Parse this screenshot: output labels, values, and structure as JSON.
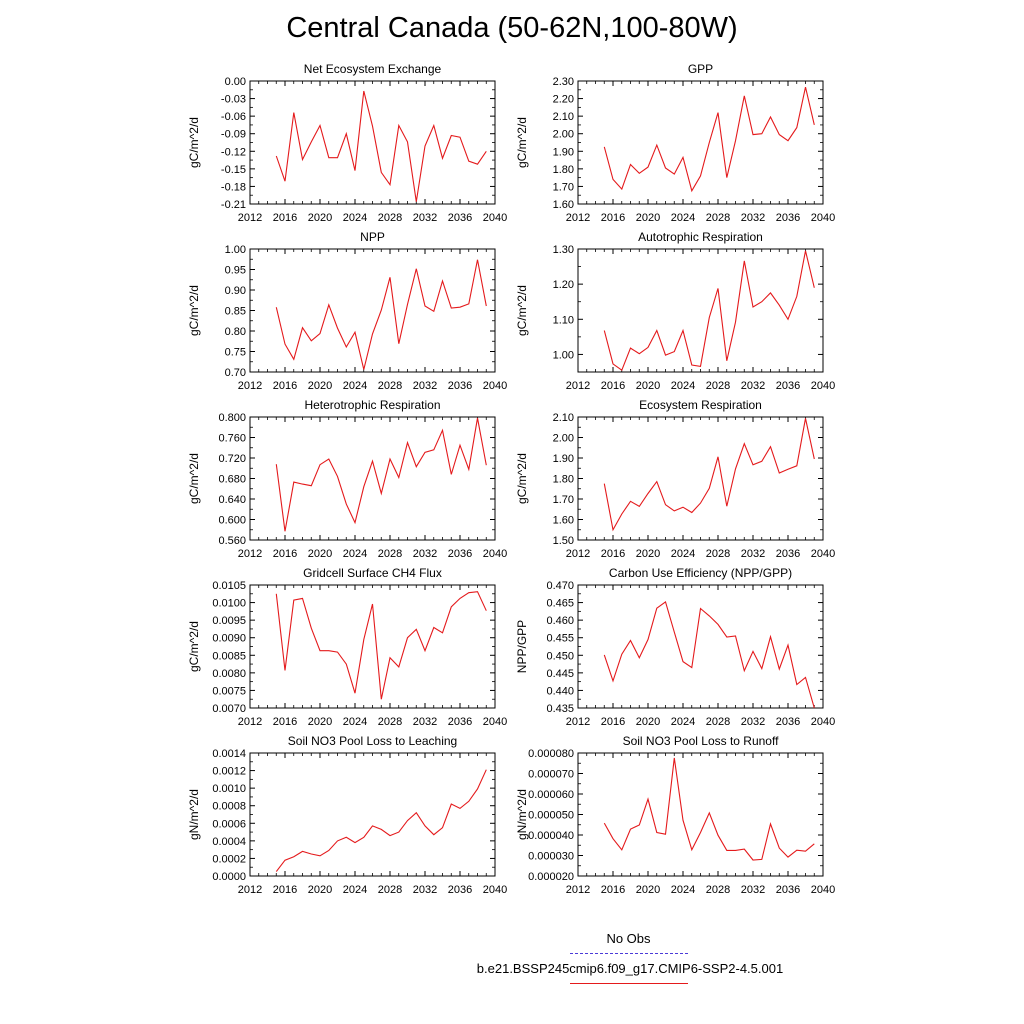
{
  "title": "Central Canada (50-62N,100-80W)",
  "legend": {
    "obs_label": "No Obs",
    "model_label": "b.e21.BSSP245cmip6.f09_g17.CMIP6-SSP2-4.5.001",
    "obs_color": "#4b3bd8",
    "model_color": "#e41a1c"
  },
  "chart_data": [
    {
      "type": "line",
      "title": "Net Ecosystem Exchange",
      "ylabel": "gC/m^2/d",
      "xlim": [
        2012,
        2040
      ],
      "xticks": [
        "2012",
        "2016",
        "2020",
        "2024",
        "2028",
        "2032",
        "2036",
        "2040"
      ],
      "ylim": [
        -0.21,
        0.0
      ],
      "yticks": [
        "-0.21",
        "-0.18",
        "-0.15",
        "-0.12",
        "-0.09",
        "-0.06",
        "-0.03",
        "0.00"
      ],
      "x": [
        2015,
        2016,
        2017,
        2018,
        2019,
        2020,
        2021,
        2022,
        2023,
        2024,
        2025,
        2026,
        2027,
        2028,
        2029,
        2030,
        2031,
        2032,
        2033,
        2034,
        2035,
        2036,
        2037,
        2038,
        2039
      ],
      "y": [
        -0.128,
        -0.171,
        -0.054,
        -0.134,
        -0.104,
        -0.076,
        -0.131,
        -0.131,
        -0.09,
        -0.153,
        -0.017,
        -0.077,
        -0.156,
        -0.177,
        -0.076,
        -0.104,
        -0.206,
        -0.111,
        -0.076,
        -0.132,
        -0.093,
        -0.096,
        -0.137,
        -0.142,
        -0.12
      ],
      "color": "#e41a1c"
    },
    {
      "type": "line",
      "title": "GPP",
      "ylabel": "gC/m^2/d",
      "xlim": [
        2012,
        2040
      ],
      "xticks": [
        "2012",
        "2016",
        "2020",
        "2024",
        "2028",
        "2032",
        "2036",
        "2040"
      ],
      "ylim": [
        1.6,
        2.3
      ],
      "yticks": [
        "1.60",
        "1.70",
        "1.80",
        "1.90",
        "2.00",
        "2.10",
        "2.20",
        "2.30"
      ],
      "x": [
        2015,
        2016,
        2017,
        2018,
        2019,
        2020,
        2021,
        2022,
        2023,
        2024,
        2025,
        2026,
        2027,
        2028,
        2029,
        2030,
        2031,
        2032,
        2033,
        2034,
        2035,
        2036,
        2037,
        2038,
        2039
      ],
      "y": [
        1.925,
        1.74,
        1.685,
        1.825,
        1.775,
        1.81,
        1.935,
        1.805,
        1.77,
        1.865,
        1.675,
        1.76,
        1.95,
        2.12,
        1.75,
        1.96,
        2.215,
        1.995,
        2.0,
        2.095,
        1.995,
        1.96,
        2.035,
        2.265,
        2.05
      ],
      "color": "#e41a1c"
    },
    {
      "type": "line",
      "title": "NPP",
      "ylabel": "gC/m^2/d",
      "xlim": [
        2012,
        2040
      ],
      "xticks": [
        "2012",
        "2016",
        "2020",
        "2024",
        "2028",
        "2032",
        "2036",
        "2040"
      ],
      "ylim": [
        0.7,
        1.0
      ],
      "yticks": [
        "0.70",
        "0.75",
        "0.80",
        "0.85",
        "0.90",
        "0.95",
        "1.00"
      ],
      "x": [
        2015,
        2016,
        2017,
        2018,
        2019,
        2020,
        2021,
        2022,
        2023,
        2024,
        2025,
        2026,
        2027,
        2028,
        2029,
        2030,
        2031,
        2032,
        2033,
        2034,
        2035,
        2036,
        2037,
        2038,
        2039
      ],
      "y": [
        0.858,
        0.768,
        0.731,
        0.808,
        0.776,
        0.794,
        0.864,
        0.807,
        0.761,
        0.797,
        0.706,
        0.793,
        0.851,
        0.931,
        0.769,
        0.865,
        0.952,
        0.861,
        0.848,
        0.922,
        0.856,
        0.858,
        0.866,
        0.974,
        0.861
      ],
      "color": "#e41a1c"
    },
    {
      "type": "line",
      "title": "Autotrophic Respiration",
      "ylabel": "gC/m^2/d",
      "xlim": [
        2012,
        2040
      ],
      "xticks": [
        "2012",
        "2016",
        "2020",
        "2024",
        "2028",
        "2032",
        "2036",
        "2040"
      ],
      "ylim": [
        0.95,
        1.3
      ],
      "yticks": [
        "1.00",
        "1.10",
        "1.20",
        "1.30"
      ],
      "x": [
        2015,
        2016,
        2017,
        2018,
        2019,
        2020,
        2021,
        2022,
        2023,
        2024,
        2025,
        2026,
        2027,
        2028,
        2029,
        2030,
        2031,
        2032,
        2033,
        2034,
        2035,
        2036,
        2037,
        2038,
        2039
      ],
      "y": [
        1.068,
        0.973,
        0.955,
        1.018,
        1.002,
        1.02,
        1.068,
        0.998,
        1.008,
        1.068,
        0.97,
        0.966,
        1.105,
        1.188,
        0.982,
        1.092,
        1.266,
        1.135,
        1.15,
        1.175,
        1.14,
        1.1,
        1.165,
        1.295,
        1.19
      ],
      "color": "#e41a1c"
    },
    {
      "type": "line",
      "title": "Heterotrophic Respiration",
      "ylabel": "gC/m^2/d",
      "xlim": [
        2012,
        2040
      ],
      "xticks": [
        "2012",
        "2016",
        "2020",
        "2024",
        "2028",
        "2032",
        "2036",
        "2040"
      ],
      "ylim": [
        0.56,
        0.8
      ],
      "yticks": [
        "0.560",
        "0.600",
        "0.640",
        "0.680",
        "0.720",
        "0.760",
        "0.800"
      ],
      "x": [
        2015,
        2016,
        2017,
        2018,
        2019,
        2020,
        2021,
        2022,
        2023,
        2024,
        2025,
        2026,
        2027,
        2028,
        2029,
        2030,
        2031,
        2032,
        2033,
        2034,
        2035,
        2036,
        2037,
        2038,
        2039
      ],
      "y": [
        0.708,
        0.577,
        0.673,
        0.669,
        0.666,
        0.707,
        0.718,
        0.684,
        0.63,
        0.594,
        0.664,
        0.714,
        0.651,
        0.718,
        0.682,
        0.75,
        0.703,
        0.731,
        0.736,
        0.774,
        0.688,
        0.745,
        0.698,
        0.798,
        0.706
      ],
      "color": "#e41a1c"
    },
    {
      "type": "line",
      "title": "Ecosystem Respiration",
      "ylabel": "gC/m^2/d",
      "xlim": [
        2012,
        2040
      ],
      "xticks": [
        "2012",
        "2016",
        "2020",
        "2024",
        "2028",
        "2032",
        "2036",
        "2040"
      ],
      "ylim": [
        1.5,
        2.1
      ],
      "yticks": [
        "1.50",
        "1.60",
        "1.70",
        "1.80",
        "1.90",
        "2.00",
        "2.10"
      ],
      "x": [
        2015,
        2016,
        2017,
        2018,
        2019,
        2020,
        2021,
        2022,
        2023,
        2024,
        2025,
        2026,
        2027,
        2028,
        2029,
        2030,
        2031,
        2032,
        2033,
        2034,
        2035,
        2036,
        2037,
        2038,
        2039
      ],
      "y": [
        1.775,
        1.55,
        1.627,
        1.689,
        1.664,
        1.727,
        1.785,
        1.672,
        1.642,
        1.66,
        1.634,
        1.68,
        1.752,
        1.906,
        1.665,
        1.847,
        1.97,
        1.867,
        1.884,
        1.955,
        1.827,
        1.845,
        1.862,
        2.093,
        1.895
      ],
      "color": "#e41a1c"
    },
    {
      "type": "line",
      "title": "Gridcell Surface CH4 Flux",
      "ylabel": "gC/m^2/d",
      "xlim": [
        2012,
        2040
      ],
      "xticks": [
        "2012",
        "2016",
        "2020",
        "2024",
        "2028",
        "2032",
        "2036",
        "2040"
      ],
      "ylim": [
        0.007,
        0.0105
      ],
      "yticks": [
        "0.0070",
        "0.0075",
        "0.0080",
        "0.0085",
        "0.0090",
        "0.0095",
        "0.0100",
        "0.0105"
      ],
      "x": [
        2015,
        2016,
        2017,
        2018,
        2019,
        2020,
        2021,
        2022,
        2023,
        2024,
        2025,
        2026,
        2027,
        2028,
        2029,
        2030,
        2031,
        2032,
        2033,
        2034,
        2035,
        2036,
        2037,
        2038,
        2039
      ],
      "y": [
        0.01025,
        0.00807,
        0.01007,
        0.01012,
        0.00927,
        0.00863,
        0.00863,
        0.00859,
        0.00825,
        0.00742,
        0.00895,
        0.00996,
        0.00725,
        0.00843,
        0.00817,
        0.009,
        0.00924,
        0.00863,
        0.00929,
        0.00914,
        0.00988,
        0.01012,
        0.01028,
        0.01031,
        0.00977
      ],
      "color": "#e41a1c"
    },
    {
      "type": "line",
      "title": "Carbon Use Efficiency (NPP/GPP)",
      "ylabel": "NPP/GPP",
      "xlim": [
        2012,
        2040
      ],
      "xticks": [
        "2012",
        "2016",
        "2020",
        "2024",
        "2028",
        "2032",
        "2036",
        "2040"
      ],
      "ylim": [
        0.435,
        0.47
      ],
      "yticks": [
        "0.435",
        "0.440",
        "0.445",
        "0.450",
        "0.455",
        "0.460",
        "0.465",
        "0.470"
      ],
      "x": [
        2015,
        2016,
        2017,
        2018,
        2019,
        2020,
        2021,
        2022,
        2023,
        2024,
        2025,
        2026,
        2027,
        2028,
        2029,
        2030,
        2031,
        2032,
        2033,
        2034,
        2035,
        2036,
        2037,
        2038,
        2039
      ],
      "y": [
        0.4501,
        0.4427,
        0.4503,
        0.4542,
        0.4493,
        0.4545,
        0.4634,
        0.4652,
        0.4566,
        0.4482,
        0.4465,
        0.4633,
        0.4612,
        0.4588,
        0.4552,
        0.4555,
        0.4456,
        0.4511,
        0.4462,
        0.4553,
        0.4461,
        0.4529,
        0.4417,
        0.4437,
        0.435
      ],
      "color": "#e41a1c"
    },
    {
      "type": "line",
      "title": "Soil NO3 Pool Loss to Leaching",
      "ylabel": "gN/m^2/d",
      "xlim": [
        2012,
        2040
      ],
      "xticks": [
        "2012",
        "2016",
        "2020",
        "2024",
        "2028",
        "2032",
        "2036",
        "2040"
      ],
      "ylim": [
        0.0,
        0.0014
      ],
      "yticks": [
        "0.0000",
        "0.0002",
        "0.0004",
        "0.0006",
        "0.0008",
        "0.0010",
        "0.0012",
        "0.0014"
      ],
      "x": [
        2015,
        2016,
        2017,
        2018,
        2019,
        2020,
        2021,
        2022,
        2023,
        2024,
        2025,
        2026,
        2027,
        2028,
        2029,
        2030,
        2031,
        2032,
        2033,
        2034,
        2035,
        2036,
        2037,
        2038,
        2039
      ],
      "y": [
        5e-05,
        0.00018,
        0.00022,
        0.00028,
        0.00025,
        0.00023,
        0.00029,
        0.0004,
        0.00044,
        0.00038,
        0.00044,
        0.00057,
        0.00053,
        0.00046,
        0.0005,
        0.00063,
        0.00072,
        0.00057,
        0.00047,
        0.00055,
        0.00082,
        0.00077,
        0.00085,
        0.00099,
        0.00121
      ],
      "color": "#e41a1c"
    },
    {
      "type": "line",
      "title": "Soil NO3 Pool Loss to Runoff",
      "ylabel": "gN/m^2/d",
      "xlim": [
        2012,
        2040
      ],
      "xticks": [
        "2012",
        "2016",
        "2020",
        "2024",
        "2028",
        "2032",
        "2036",
        "2040"
      ],
      "ylim": [
        2e-05,
        8e-05
      ],
      "yticks": [
        "0.000020",
        "0.000030",
        "0.000040",
        "0.000050",
        "0.000060",
        "0.000070",
        "0.000080"
      ],
      "x": [
        2015,
        2016,
        2017,
        2018,
        2019,
        2020,
        2021,
        2022,
        2023,
        2024,
        2025,
        2026,
        2027,
        2028,
        2029,
        2030,
        2031,
        2032,
        2033,
        2034,
        2035,
        2036,
        2037,
        2038,
        2039
      ],
      "y": [
        4.58e-05,
        3.82e-05,
        3.28e-05,
        4.29e-05,
        4.49e-05,
        5.75e-05,
        4.12e-05,
        4.04e-05,
        7.76e-05,
        4.72e-05,
        3.28e-05,
        4.12e-05,
        5.08e-05,
        3.99e-05,
        3.25e-05,
        3.25e-05,
        3.31e-05,
        2.78e-05,
        2.81e-05,
        4.54e-05,
        3.36e-05,
        2.92e-05,
        3.26e-05,
        3.21e-05,
        3.57e-05
      ],
      "color": "#e41a1c"
    }
  ]
}
